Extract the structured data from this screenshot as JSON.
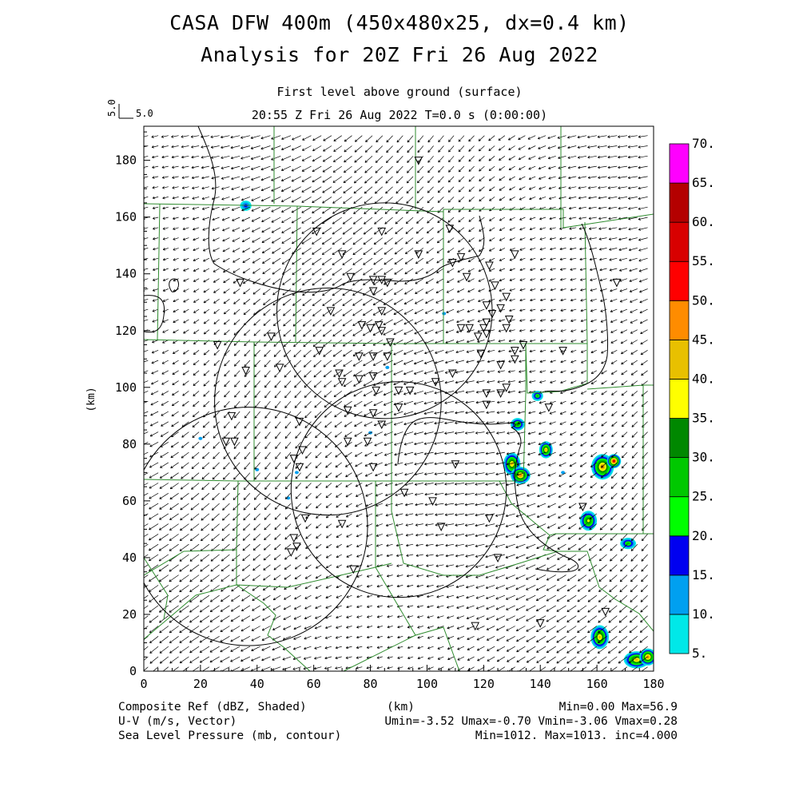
{
  "title": {
    "line1": "CASA DFW 400m (450x480x25, dx=0.4 km)",
    "line2": "Analysis for 20Z Fri 26 Aug 2022"
  },
  "subtitle": {
    "level": "First level above ground (surface)",
    "time": "20:55 Z Fri 26 Aug 2022    T=0.0 s (0:00:00)"
  },
  "vector_scale": {
    "label_vertical": "5.0",
    "label_horizontal": "5.0"
  },
  "axes": {
    "x_ticks": [
      "0",
      "20",
      "40",
      "60",
      "80",
      "100",
      "120",
      "140",
      "160",
      "180"
    ],
    "y_ticks": [
      "0",
      "20",
      "40",
      "60",
      "80",
      "100",
      "120",
      "140",
      "160",
      "180"
    ],
    "x_unit": "(km)",
    "y_unit": "(km)",
    "x_range": [
      0,
      180
    ],
    "y_range": [
      0,
      192
    ]
  },
  "colorbar": {
    "labels": [
      "5.",
      "10.",
      "15.",
      "20.",
      "25.",
      "30.",
      "35.",
      "40.",
      "45.",
      "50.",
      "55.",
      "60.",
      "65.",
      "70."
    ],
    "colors": [
      "#00e8e8",
      "#00a0f0",
      "#0000f0",
      "#00ff00",
      "#00c800",
      "#008800",
      "#ffff00",
      "#e8c000",
      "#ff8c00",
      "#ff0000",
      "#d80000",
      "#b40000",
      "#ff00ff"
    ]
  },
  "footer": {
    "left": [
      "Composite Ref (dBZ, Shaded)",
      "U-V (m/s, Vector)",
      "Sea Level Pressure (mb, contour)"
    ],
    "center": "(km)",
    "right": [
      "Min=0.00 Max=56.9",
      "Umin=-3.52 Umax=-0.70 Vmin=-3.06 Vmax=0.28",
      "Min=1012. Max=1013. inc=4.000"
    ]
  },
  "fields": {
    "reflectivity": {
      "min": 0.0,
      "max": 56.9
    },
    "wind": {
      "umin": -3.52,
      "umax": -0.7,
      "vmin": -3.06,
      "vmax": 0.28
    },
    "pressure": {
      "min": 1012,
      "max": 1013,
      "inc": 4.0
    }
  },
  "radar_rings": [
    {
      "cx_km": 85,
      "cy_km": 127,
      "r_km": 38
    },
    {
      "cx_km": 65,
      "cy_km": 95,
      "r_km": 40
    },
    {
      "cx_km": 90,
      "cy_km": 64,
      "r_km": 38
    },
    {
      "cx_km": 37,
      "cy_km": 51,
      "r_km": 42
    }
  ],
  "storm_cells": [
    {
      "x": 36,
      "y": 164,
      "rx": 2.0,
      "ry": 1.8,
      "peak": 15
    },
    {
      "x": 130,
      "y": 73,
      "rx": 3.0,
      "ry": 4.0,
      "peak": 42
    },
    {
      "x": 133,
      "y": 69,
      "rx": 3.5,
      "ry": 3.0,
      "peak": 45
    },
    {
      "x": 132,
      "y": 87,
      "rx": 2.5,
      "ry": 2.2,
      "peak": 30
    },
    {
      "x": 139,
      "y": 97,
      "rx": 2.0,
      "ry": 1.8,
      "peak": 25
    },
    {
      "x": 142,
      "y": 78,
      "rx": 2.4,
      "ry": 3.0,
      "peak": 40
    },
    {
      "x": 162,
      "y": 72,
      "rx": 4.0,
      "ry": 4.5,
      "peak": 48
    },
    {
      "x": 166,
      "y": 74,
      "rx": 2.5,
      "ry": 2.5,
      "peak": 57
    },
    {
      "x": 157,
      "y": 53,
      "rx": 3.0,
      "ry": 3.5,
      "peak": 35
    },
    {
      "x": 171,
      "y": 45,
      "rx": 2.8,
      "ry": 2.0,
      "peak": 28
    },
    {
      "x": 161,
      "y": 12,
      "rx": 3.2,
      "ry": 4.2,
      "peak": 42
    },
    {
      "x": 174,
      "y": 4,
      "rx": 4.5,
      "ry": 3.0,
      "peak": 40
    },
    {
      "x": 178,
      "y": 5,
      "rx": 3.0,
      "ry": 3.0,
      "peak": 45
    }
  ],
  "stations": [
    [
      34,
      137
    ],
    [
      26,
      115
    ],
    [
      36,
      106
    ],
    [
      31,
      90
    ],
    [
      29,
      81
    ],
    [
      32,
      81
    ],
    [
      45,
      118
    ],
    [
      48,
      107
    ],
    [
      62,
      113
    ],
    [
      66,
      127
    ],
    [
      69,
      105
    ],
    [
      70,
      102
    ],
    [
      72,
      92
    ],
    [
      72,
      81
    ],
    [
      70,
      52
    ],
    [
      74,
      36
    ],
    [
      55,
      88
    ],
    [
      56,
      78
    ],
    [
      55,
      72
    ],
    [
      53,
      75
    ],
    [
      57,
      54
    ],
    [
      54,
      44
    ],
    [
      52,
      42
    ],
    [
      53,
      47
    ],
    [
      61,
      155
    ],
    [
      70,
      147
    ],
    [
      73,
      139
    ],
    [
      81,
      134
    ],
    [
      81,
      138
    ],
    [
      84,
      138
    ],
    [
      86,
      137
    ],
    [
      84,
      127
    ],
    [
      83,
      122
    ],
    [
      80,
      121
    ],
    [
      77,
      122
    ],
    [
      76,
      111
    ],
    [
      81,
      111
    ],
    [
      87,
      116
    ],
    [
      84,
      120
    ],
    [
      86,
      111
    ],
    [
      76,
      103
    ],
    [
      81,
      104
    ],
    [
      82,
      99
    ],
    [
      90,
      93
    ],
    [
      90,
      99
    ],
    [
      94,
      99
    ],
    [
      84,
      87
    ],
    [
      81,
      91
    ],
    [
      79,
      81
    ],
    [
      81,
      72
    ],
    [
      92,
      63
    ],
    [
      102,
      60
    ],
    [
      105,
      51
    ],
    [
      110,
      73
    ],
    [
      122,
      54
    ],
    [
      125,
      40
    ],
    [
      97,
      180
    ],
    [
      84,
      155
    ],
    [
      97,
      147
    ],
    [
      109,
      144
    ],
    [
      112,
      146
    ],
    [
      114,
      139
    ],
    [
      108,
      156
    ],
    [
      122,
      143
    ],
    [
      124,
      136
    ],
    [
      128,
      132
    ],
    [
      126,
      128
    ],
    [
      121,
      129
    ],
    [
      123,
      126
    ],
    [
      120,
      121
    ],
    [
      118,
      118
    ],
    [
      112,
      121
    ],
    [
      115,
      121
    ],
    [
      121,
      123
    ],
    [
      121,
      119
    ],
    [
      129,
      124
    ],
    [
      128,
      121
    ],
    [
      131,
      147
    ],
    [
      134,
      115
    ],
    [
      131,
      113
    ],
    [
      131,
      110
    ],
    [
      126,
      108
    ],
    [
      119,
      112
    ],
    [
      109,
      105
    ],
    [
      103,
      102
    ],
    [
      121,
      98
    ],
    [
      126,
      98
    ],
    [
      128,
      100
    ],
    [
      121,
      94
    ],
    [
      143,
      93
    ],
    [
      148,
      113
    ],
    [
      155,
      58
    ],
    [
      163,
      21
    ],
    [
      140,
      17
    ],
    [
      117,
      16
    ],
    [
      167,
      137
    ]
  ]
}
